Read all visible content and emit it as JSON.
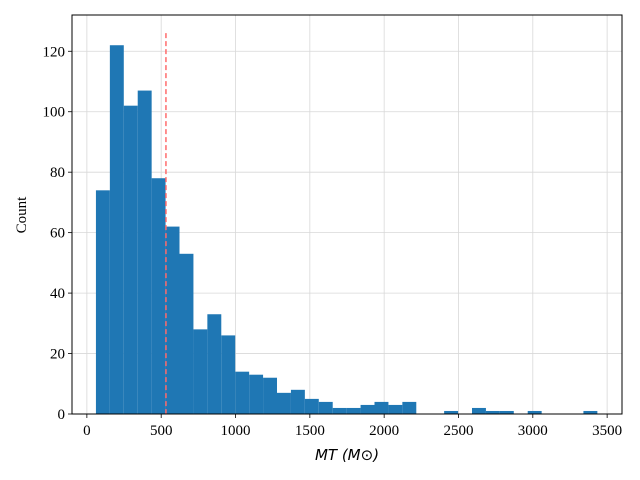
{
  "chart_data": {
    "type": "histogram",
    "xlabel": "MT (M⊙)",
    "ylabel": "Count",
    "bins": [
      61,
      154.7,
      248.4,
      342.1,
      435.8,
      529.5,
      623.2,
      716.9,
      810.6,
      904.3,
      998,
      1091.7,
      1185.4,
      1279.1,
      1372.8,
      1466.5,
      1560.2,
      1653.9,
      1747.6,
      1841.3,
      1935,
      2028.7,
      2122.4,
      2216.1,
      2309.8,
      2403.5,
      2497.2,
      2590.9,
      2684.6,
      2778.3,
      2872,
      2965.7,
      3059.4,
      3153.1,
      3246.8,
      3340.5,
      3434.2
    ],
    "counts": [
      74,
      122,
      102,
      107,
      78,
      62,
      53,
      28,
      33,
      26,
      14,
      13,
      12,
      7,
      8,
      5,
      4,
      2,
      2,
      3,
      4,
      3,
      4,
      0,
      0,
      1,
      0,
      2,
      1,
      1,
      0,
      1,
      0,
      0,
      0,
      1
    ],
    "color": "#1f77b4",
    "vline": {
      "x": 532,
      "ymax": 126,
      "color": "#ff6b6b"
    },
    "xlim": [
      -100,
      3600
    ],
    "ylim": [
      0,
      132
    ],
    "xticks": [
      0,
      500,
      1000,
      1500,
      2000,
      2500,
      3000,
      3500
    ],
    "yticks": [
      0,
      20,
      40,
      60,
      80,
      100,
      120
    ],
    "grid": true
  }
}
